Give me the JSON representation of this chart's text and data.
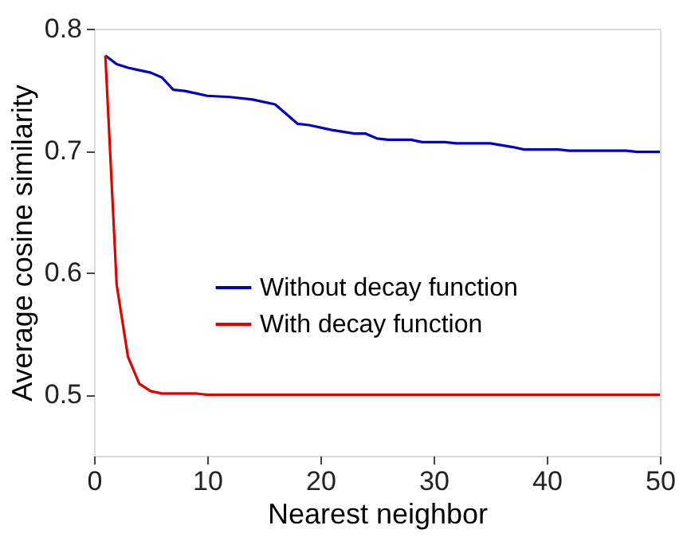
{
  "chart_data": {
    "type": "line",
    "xlabel": "Nearest neighbor",
    "ylabel": "Average cosine similarity",
    "xlim": [
      0,
      50
    ],
    "xticks": [
      0,
      10,
      20,
      30,
      40,
      50
    ],
    "ylim": [
      0.45,
      0.8
    ],
    "yticks": [
      0.5,
      0.6,
      0.7,
      0.8
    ],
    "grid": false,
    "legend": "center",
    "marker": "none",
    "line_style": "solid",
    "series": [
      {
        "name": "Without decay function",
        "color": "#0000c8",
        "x": [
          1,
          2,
          3,
          4,
          5,
          6,
          7,
          8,
          9,
          10,
          12,
          14,
          16,
          18,
          19,
          21,
          23,
          24,
          25,
          26,
          28,
          29,
          31,
          32,
          35,
          37,
          38,
          41,
          42,
          47,
          48,
          50
        ],
        "values": [
          0.778,
          0.771,
          0.768,
          0.766,
          0.764,
          0.76,
          0.75,
          0.749,
          0.747,
          0.745,
          0.744,
          0.742,
          0.738,
          0.722,
          0.721,
          0.717,
          0.714,
          0.714,
          0.71,
          0.709,
          0.709,
          0.707,
          0.707,
          0.706,
          0.706,
          0.703,
          0.701,
          0.701,
          0.7,
          0.7,
          0.699,
          0.699
        ]
      },
      {
        "name": "With decay function",
        "color": "#e60000",
        "x": [
          1,
          2,
          3,
          4,
          5,
          6,
          9,
          10,
          50
        ],
        "values": [
          0.778,
          0.59,
          0.531,
          0.509,
          0.503,
          0.501,
          0.501,
          0.5,
          0.5
        ]
      }
    ]
  }
}
